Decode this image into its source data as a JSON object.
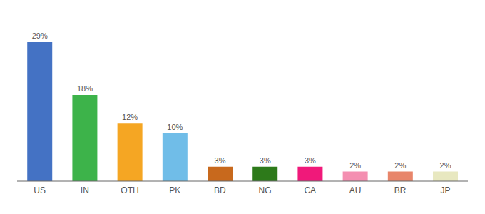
{
  "chart_data": {
    "type": "bar",
    "categories": [
      "US",
      "IN",
      "OTH",
      "PK",
      "BD",
      "NG",
      "CA",
      "AU",
      "BR",
      "JP"
    ],
    "values": [
      29,
      18,
      12,
      10,
      3,
      3,
      3,
      2,
      2,
      2
    ],
    "value_labels": [
      "29%",
      "18%",
      "12%",
      "10%",
      "3%",
      "3%",
      "3%",
      "2%",
      "2%",
      "2%"
    ],
    "colors": [
      "#4472c4",
      "#3db34a",
      "#f5a623",
      "#70bde8",
      "#c8691d",
      "#2d7a1a",
      "#f0197a",
      "#f48fb1",
      "#e8856a",
      "#e8e8c0"
    ],
    "ylim": [
      0,
      33
    ],
    "data_labels": true,
    "tick_labels": "x",
    "grid": false
  }
}
